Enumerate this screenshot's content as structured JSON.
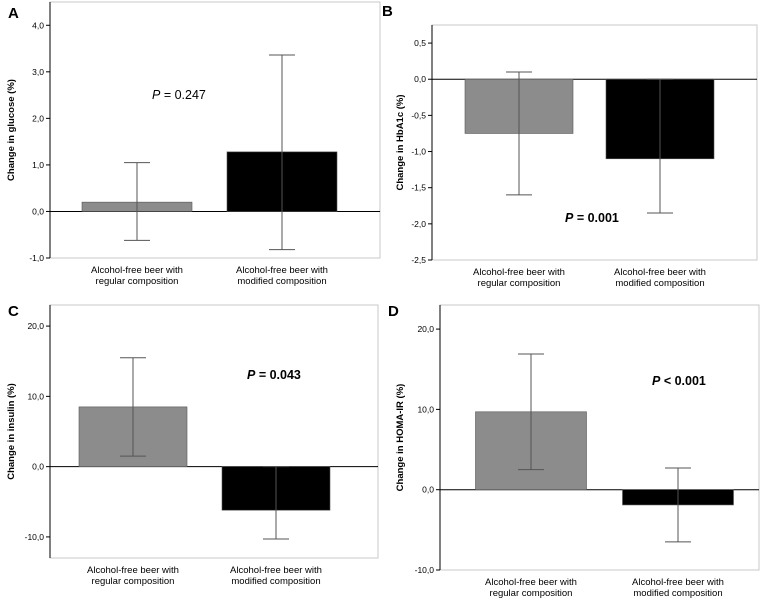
{
  "colors": {
    "regular": "#8c8c8c",
    "modified": "#000000",
    "axis": "#000000"
  },
  "chart_data": [
    {
      "panel": "A",
      "type": "bar",
      "ylabel": "Change in glucose (%)",
      "categories": [
        [
          "Alcohol-free beer with",
          "regular composition"
        ],
        [
          "Alcohol-free beer with",
          "modified composition"
        ]
      ],
      "values": [
        0.2,
        1.28
      ],
      "error_low": [
        -0.62,
        -0.82
      ],
      "error_high": [
        1.05,
        3.36
      ],
      "ylim": [
        -1.0,
        4.5
      ],
      "yticks": [
        -1.0,
        0.0,
        1.0,
        2.0,
        3.0,
        4.0
      ],
      "ytick_labels": [
        "-1,0",
        "0,0",
        "1,0",
        "2,0",
        "3,0",
        "4,0"
      ],
      "annotation": {
        "italic": "P",
        "rest": " = 0.247",
        "bold": false
      }
    },
    {
      "panel": "B",
      "type": "bar",
      "ylabel": "Change in HbA1c (%)",
      "categories": [
        [
          "Alcohol-free beer with",
          "regular composition"
        ],
        [
          "Alcohol-free beer with",
          "modified composition"
        ]
      ],
      "values": [
        -0.75,
        -1.1
      ],
      "error_low": [
        -1.6,
        -1.85
      ],
      "error_high": [
        0.1,
        0.0
      ],
      "ylim": [
        -2.5,
        0.75
      ],
      "yticks": [
        -2.5,
        -2.0,
        -1.5,
        -1.0,
        -0.5,
        0.0,
        0.5
      ],
      "ytick_labels": [
        "-2,5",
        "-2,0",
        "-1,5",
        "-1,0",
        "-0,5",
        "0,0",
        "0,5"
      ],
      "annotation": {
        "italic": "P",
        "rest": " = 0.001",
        "bold": true
      }
    },
    {
      "panel": "C",
      "type": "bar",
      "ylabel": "Change in insulin (%)",
      "categories": [
        [
          "Alcohol-free beer with",
          "regular composition"
        ],
        [
          "Alcohol-free beer with",
          "modified composition"
        ]
      ],
      "values": [
        8.5,
        -6.2
      ],
      "error_low": [
        1.5,
        -10.3
      ],
      "error_high": [
        15.5,
        0.0
      ],
      "ylim": [
        -13.0,
        23.0
      ],
      "yticks": [
        -10.0,
        0.0,
        10.0,
        20.0
      ],
      "ytick_labels": [
        "-10,0",
        "0,0",
        "10,0",
        "20,0"
      ],
      "annotation": {
        "italic": "P",
        "rest": " = 0.043",
        "bold": true
      }
    },
    {
      "panel": "D",
      "type": "bar",
      "ylabel": "Change in HOMA-IR (%)",
      "categories": [
        [
          "Alcohol-free beer with",
          "regular composition"
        ],
        [
          "Alcohol-free beer with",
          "modified composition"
        ]
      ],
      "values": [
        9.7,
        -1.9
      ],
      "error_low": [
        2.5,
        -6.5
      ],
      "error_high": [
        16.9,
        2.7
      ],
      "ylim": [
        -10.0,
        23.0
      ],
      "yticks": [
        -10.0,
        0.0,
        10.0,
        20.0
      ],
      "ytick_labels": [
        "-10,0",
        "0,0",
        "10,0",
        "20,0"
      ],
      "annotation": {
        "italic": "P",
        "rest": " < 0.001",
        "bold": true
      }
    }
  ]
}
